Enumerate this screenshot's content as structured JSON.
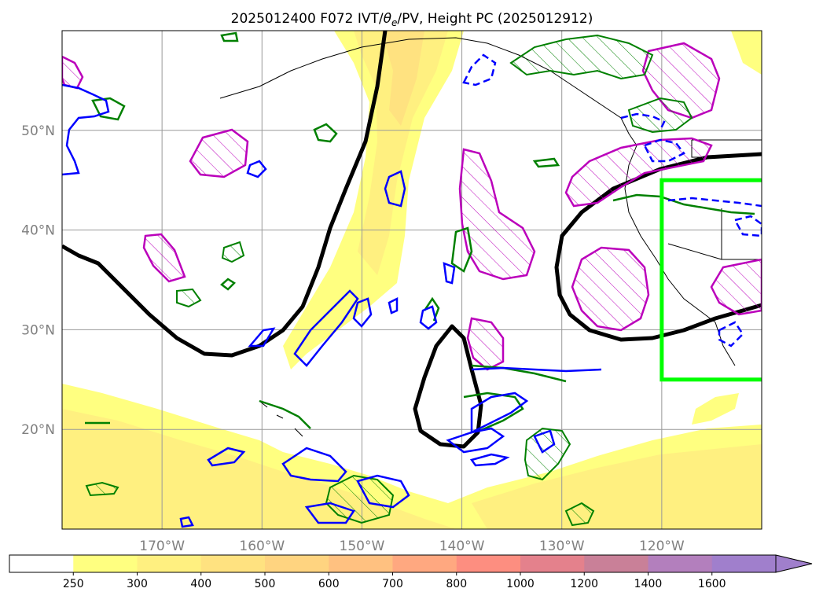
{
  "chart_data": {
    "type": "map",
    "title_parts": [
      "2025012400 F072 IVT/",
      "θ",
      "e",
      "/PV, Height PC (2025012912)"
    ],
    "map": {
      "projection": "plate-carree",
      "lon_range": [
        -180,
        -110
      ],
      "lat_range": [
        10,
        60
      ],
      "grid": true,
      "lon_ticks": [
        -170,
        -160,
        -150,
        -140,
        -130,
        -120
      ],
      "lat_ticks": [
        20,
        30,
        40,
        50
      ],
      "lon_tick_labels": [
        "170°W",
        "160°W",
        "150°W",
        "140°W",
        "130°W",
        "120°W"
      ],
      "lat_tick_labels": [
        "20°N",
        "30°N",
        "40°N",
        "50°N"
      ],
      "highlight_box": {
        "lon": [
          -120,
          -110
        ],
        "lat": [
          25,
          45
        ],
        "color": "#00ff00"
      }
    },
    "colorbar": {
      "levels": [
        250,
        300,
        400,
        500,
        600,
        700,
        800,
        1000,
        1200,
        1400,
        1600
      ],
      "labels": [
        "250",
        "300",
        "400",
        "500",
        "600",
        "700",
        "800",
        "1000",
        "1200",
        "1400",
        "1600"
      ],
      "colors": [
        "#ffffff",
        "#ffff80",
        "#fff080",
        "#ffe280",
        "#ffd480",
        "#ffc180",
        "#ffa880",
        "#fd8e80",
        "#e4818c",
        "#c98098",
        "#b37fbd",
        "#a07fcc"
      ],
      "extend": "max"
    },
    "series": [
      {
        "type": "filled-contour",
        "style": "yellow-orange shading"
      },
      {
        "type": "contour",
        "color": "#000000",
        "style": "thick black"
      },
      {
        "type": "contour",
        "color": "#bb00bb",
        "style": "magenta hatched"
      },
      {
        "type": "contour",
        "color": "#0000ff",
        "style": "blue solid/dashed"
      },
      {
        "type": "contour",
        "color": "#008000",
        "style": "green hatched"
      }
    ]
  }
}
